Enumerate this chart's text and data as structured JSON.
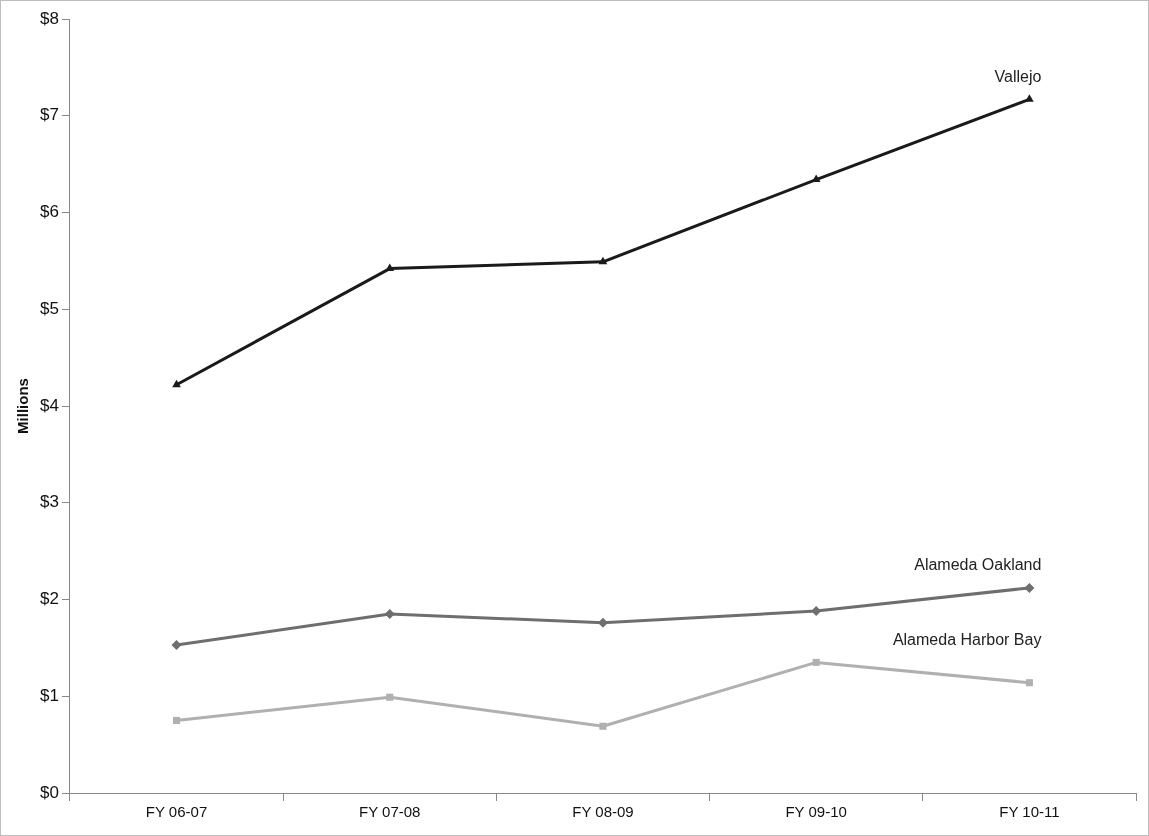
{
  "chart_data": {
    "type": "line",
    "ylabel": "Millions",
    "categories": [
      "FY 06-07",
      "FY 07-08",
      "FY 08-09",
      "FY 09-10",
      "FY 10-11"
    ],
    "series": [
      {
        "name": "Vallejo",
        "color": "#1a1a1a",
        "marker": "triangle",
        "values": [
          4.22,
          5.42,
          5.49,
          6.34,
          7.17
        ]
      },
      {
        "name": "Alameda Oakland",
        "color": "#6e6e6e",
        "marker": "diamond",
        "values": [
          1.53,
          1.85,
          1.76,
          1.88,
          2.12
        ]
      },
      {
        "name": "Alameda Harbor Bay",
        "color": "#b0b0b0",
        "marker": "square",
        "values": [
          0.75,
          0.99,
          0.69,
          1.35,
          1.14
        ]
      }
    ],
    "ylim": [
      0,
      8
    ],
    "yticks": [
      {
        "value": 0,
        "label": "$0"
      },
      {
        "value": 1,
        "label": "$1"
      },
      {
        "value": 2,
        "label": "$2"
      },
      {
        "value": 3,
        "label": "$3"
      },
      {
        "value": 4,
        "label": "$4"
      },
      {
        "value": 5,
        "label": "$5"
      },
      {
        "value": 6,
        "label": "$6"
      },
      {
        "value": 7,
        "label": "$7"
      },
      {
        "value": 8,
        "label": "$8"
      }
    ],
    "grid": false,
    "legend": false,
    "line_style": "solid"
  }
}
